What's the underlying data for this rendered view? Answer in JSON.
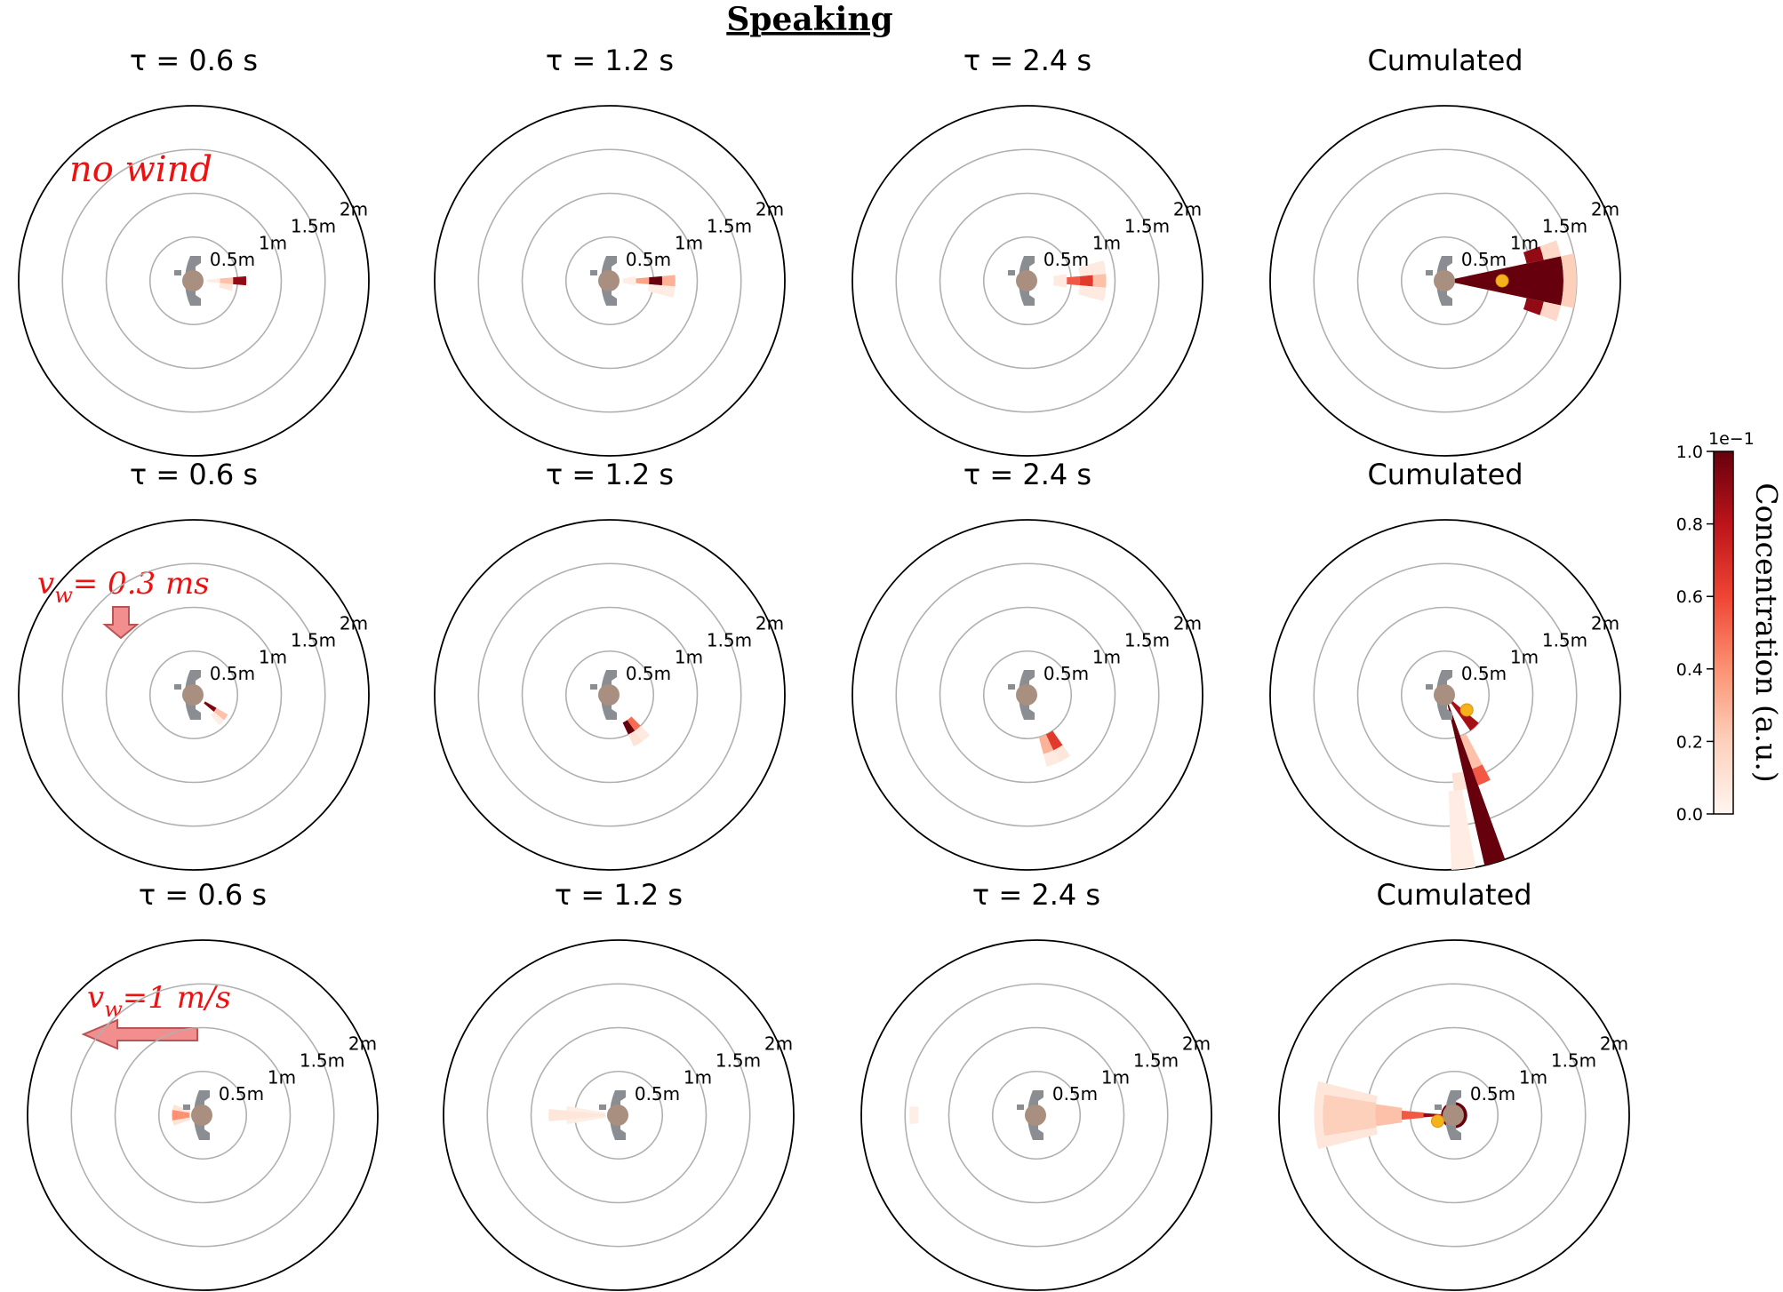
{
  "figure": {
    "title": "Speaking",
    "ring_labels": [
      "0.5m",
      "1m",
      "1.5m",
      "2m"
    ],
    "rows": [
      {
        "panels": [
          {
            "title": "τ = 0.6 s"
          },
          {
            "title": "τ = 1.2 s"
          },
          {
            "title": "τ = 2.4 s"
          },
          {
            "title": "Cumulated"
          }
        ],
        "annotation": {
          "text": "no wind",
          "arrow": "none"
        }
      },
      {
        "panels": [
          {
            "title": "τ = 0.6 s"
          },
          {
            "title": "τ = 1.2 s"
          },
          {
            "title": "τ = 2.4 s"
          },
          {
            "title": "Cumulated"
          }
        ],
        "annotation": {
          "text": "v",
          "subscript": "w",
          "suffix": "= 0.3 ms",
          "arrow": "down"
        }
      },
      {
        "panels": [
          {
            "title": "τ = 0.6 s"
          },
          {
            "title": "τ = 1.2 s"
          },
          {
            "title": "τ = 2.4 s"
          },
          {
            "title": "Cumulated"
          }
        ],
        "annotation": {
          "text": "v",
          "subscript": "w",
          "suffix": "=1 m/s",
          "arrow": "left"
        }
      }
    ],
    "colorbar": {
      "label": "Concentration (a.u.)",
      "exponent": "1e−1",
      "ticks": [
        "0.0",
        "0.2",
        "0.4",
        "0.6",
        "0.8",
        "1.0"
      ]
    },
    "colors": {
      "ring": "#b0b0b0",
      "outer_ring": "#000000",
      "annotation": "#ee1111",
      "arrow_fill": "#f28e8e",
      "arrow_stroke": "#b55555",
      "marker": "#f5b21a",
      "body": "#8a8d92",
      "head": "#a88f80",
      "cmap_low": "#fff5f0",
      "cmap_high": "#67000d"
    }
  },
  "chart_data": {
    "type": "polar-heatmap",
    "r_max_m": 2.0,
    "r_ticks_m": [
      0.5,
      1.0,
      1.5,
      2.0
    ],
    "angle_convention": "degrees, 0 = speaker facing direction (right), positive counter-clockwise",
    "colorbar_range": [
      0.0,
      1.0
    ],
    "colorbar_scale": "1e-1",
    "panels": [
      {
        "row": 0,
        "col": 0,
        "title": "τ = 0.6 s",
        "cells": [
          {
            "r0": 0.15,
            "r1": 0.3,
            "a0": -5,
            "a1": 5,
            "c": 0.05
          },
          {
            "r0": 0.3,
            "r1": 0.45,
            "a0": -5,
            "a1": 5,
            "c": 0.25
          },
          {
            "r0": 0.3,
            "r1": 0.45,
            "a0": -15,
            "a1": -5,
            "c": 0.08
          },
          {
            "r0": 0.45,
            "r1": 0.6,
            "a0": -5,
            "a1": 5,
            "c": 0.9
          }
        ]
      },
      {
        "row": 0,
        "col": 1,
        "title": "τ = 1.2 s",
        "cells": [
          {
            "r0": 0.15,
            "r1": 0.3,
            "a0": -10,
            "a1": 10,
            "c": 0.04
          },
          {
            "r0": 0.3,
            "r1": 0.45,
            "a0": -5,
            "a1": 5,
            "c": 0.35
          },
          {
            "r0": 0.45,
            "r1": 0.6,
            "a0": -5,
            "a1": 5,
            "c": 1.0
          },
          {
            "r0": 0.6,
            "r1": 0.75,
            "a0": -5,
            "a1": 5,
            "c": 0.3
          },
          {
            "r0": 0.45,
            "r1": 0.75,
            "a0": -15,
            "a1": -5,
            "c": 0.05
          }
        ]
      },
      {
        "row": 0,
        "col": 2,
        "title": "τ = 2.4 s",
        "cells": [
          {
            "r0": 0.3,
            "r1": 0.45,
            "a0": -10,
            "a1": 10,
            "c": 0.06
          },
          {
            "r0": 0.45,
            "r1": 0.6,
            "a0": -5,
            "a1": 5,
            "c": 0.55
          },
          {
            "r0": 0.6,
            "r1": 0.75,
            "a0": -5,
            "a1": 5,
            "c": 0.65
          },
          {
            "r0": 0.75,
            "r1": 0.9,
            "a0": -5,
            "a1": 5,
            "c": 0.25
          },
          {
            "r0": 0.6,
            "r1": 0.9,
            "a0": -15,
            "a1": -5,
            "c": 0.06
          },
          {
            "r0": 0.6,
            "r1": 0.9,
            "a0": 5,
            "a1": 15,
            "c": 0.06
          }
        ]
      },
      {
        "row": 0,
        "col": 3,
        "title": "Cumulated",
        "marker": {
          "r": 0.65,
          "a": 0
        },
        "cells": [
          {
            "r0": 0.0,
            "r1": 1.35,
            "a0": -12,
            "a1": 12,
            "c": 1.0
          },
          {
            "r0": 1.35,
            "r1": 1.5,
            "a0": -12,
            "a1": 12,
            "c": 0.2
          },
          {
            "r0": 0.95,
            "r1": 1.15,
            "a0": 12,
            "a1": 20,
            "c": 0.9
          },
          {
            "r0": 0.95,
            "r1": 1.15,
            "a0": -20,
            "a1": -12,
            "c": 0.9
          },
          {
            "r0": 1.15,
            "r1": 1.35,
            "a0": 12,
            "a1": 20,
            "c": 0.15
          },
          {
            "r0": 1.15,
            "r1": 1.35,
            "a0": -20,
            "a1": -12,
            "c": 0.15
          }
        ]
      },
      {
        "row": 1,
        "col": 0,
        "title": "τ = 0.6 s",
        "cells": [
          {
            "r0": 0.15,
            "r1": 0.3,
            "a0": -40,
            "a1": -30,
            "c": 0.95
          },
          {
            "r0": 0.3,
            "r1": 0.45,
            "a0": -40,
            "a1": -30,
            "c": 0.25
          },
          {
            "r0": 0.3,
            "r1": 0.45,
            "a0": -50,
            "a1": -40,
            "c": 0.05
          }
        ]
      },
      {
        "row": 1,
        "col": 1,
        "title": "τ = 1.2 s",
        "cells": [
          {
            "r0": 0.35,
            "r1": 0.5,
            "a0": -65,
            "a1": -55,
            "c": 1.0
          },
          {
            "r0": 0.35,
            "r1": 0.5,
            "a0": -55,
            "a1": -45,
            "c": 0.5
          },
          {
            "r0": 0.5,
            "r1": 0.65,
            "a0": -65,
            "a1": -55,
            "c": 0.1
          },
          {
            "r0": 0.5,
            "r1": 0.65,
            "a0": -55,
            "a1": -45,
            "c": 0.06
          }
        ]
      },
      {
        "row": 1,
        "col": 2,
        "title": "τ = 2.4 s",
        "cells": [
          {
            "r0": 0.5,
            "r1": 0.7,
            "a0": -65,
            "a1": -55,
            "c": 0.65
          },
          {
            "r0": 0.5,
            "r1": 0.7,
            "a0": -75,
            "a1": -65,
            "c": 0.3
          },
          {
            "r0": 0.7,
            "r1": 0.85,
            "a0": -65,
            "a1": -55,
            "c": 0.08
          },
          {
            "r0": 0.7,
            "r1": 0.85,
            "a0": -75,
            "a1": -65,
            "c": 0.06
          }
        ]
      },
      {
        "row": 1,
        "col": 3,
        "title": "Cumulated",
        "marker": {
          "r": 0.3,
          "a": -35
        },
        "cells": [
          {
            "r0": 0.0,
            "r1": 2.0,
            "a0": -77,
            "a1": -70,
            "c": 1.0
          },
          {
            "r0": 0.9,
            "r1": 1.1,
            "a0": -70,
            "a1": -62,
            "c": 0.55
          },
          {
            "r0": 0.9,
            "r1": 1.1,
            "a0": -85,
            "a1": -77,
            "c": 0.1
          },
          {
            "r0": 0.0,
            "r1": 0.5,
            "a0": -55,
            "a1": -40,
            "c": 0.85
          },
          {
            "r0": 1.1,
            "r1": 2.0,
            "a0": -88,
            "a1": -80,
            "c": 0.05
          },
          {
            "r0": 0.5,
            "r1": 0.9,
            "a0": -70,
            "a1": -62,
            "c": 0.25
          }
        ]
      },
      {
        "row": 2,
        "col": 0,
        "title": "τ = 0.6 s",
        "cells": [
          {
            "r0": 0.15,
            "r1": 0.35,
            "a0": 170,
            "a1": 190,
            "c": 0.4
          },
          {
            "r0": 0.15,
            "r1": 0.35,
            "a0": 160,
            "a1": 170,
            "c": 0.1
          },
          {
            "r0": 0.15,
            "r1": 0.35,
            "a0": 190,
            "a1": 200,
            "c": 0.1
          }
        ]
      },
      {
        "row": 2,
        "col": 1,
        "title": "τ = 1.2 s",
        "cells": [
          {
            "r0": 0.15,
            "r1": 0.8,
            "a0": 175,
            "a1": 185,
            "c": 0.08
          },
          {
            "r0": 0.15,
            "r1": 0.6,
            "a0": 170,
            "a1": 175,
            "c": 0.04
          },
          {
            "r0": 0.15,
            "r1": 0.6,
            "a0": 185,
            "a1": 190,
            "c": 0.04
          }
        ]
      },
      {
        "row": 2,
        "col": 2,
        "title": "τ = 2.4 s",
        "cells": [
          {
            "r0": 1.35,
            "r1": 1.45,
            "a0": 176,
            "a1": 184,
            "c": 0.04
          }
        ]
      },
      {
        "row": 2,
        "col": 3,
        "title": "Cumulated",
        "marker": {
          "r": 0.2,
          "a": 200
        },
        "cells": [
          {
            "r0": 0.9,
            "r1": 1.6,
            "a0": 166,
            "a1": 194,
            "c": 0.08
          },
          {
            "r0": 0.9,
            "r1": 1.5,
            "a0": 171,
            "a1": 189,
            "c": 0.2
          },
          {
            "r0": 0.6,
            "r1": 0.9,
            "a0": 172,
            "a1": 188,
            "c": 0.25
          },
          {
            "r0": 0.35,
            "r1": 0.6,
            "a0": 175,
            "a1": 185,
            "c": 0.55
          },
          {
            "r0": 0.15,
            "r1": 0.35,
            "a0": 176,
            "a1": 184,
            "c": 0.9
          },
          {
            "r0": 0.0,
            "r1": 0.15,
            "a0": 0,
            "a1": 360,
            "c": 1.0
          }
        ]
      }
    ]
  }
}
